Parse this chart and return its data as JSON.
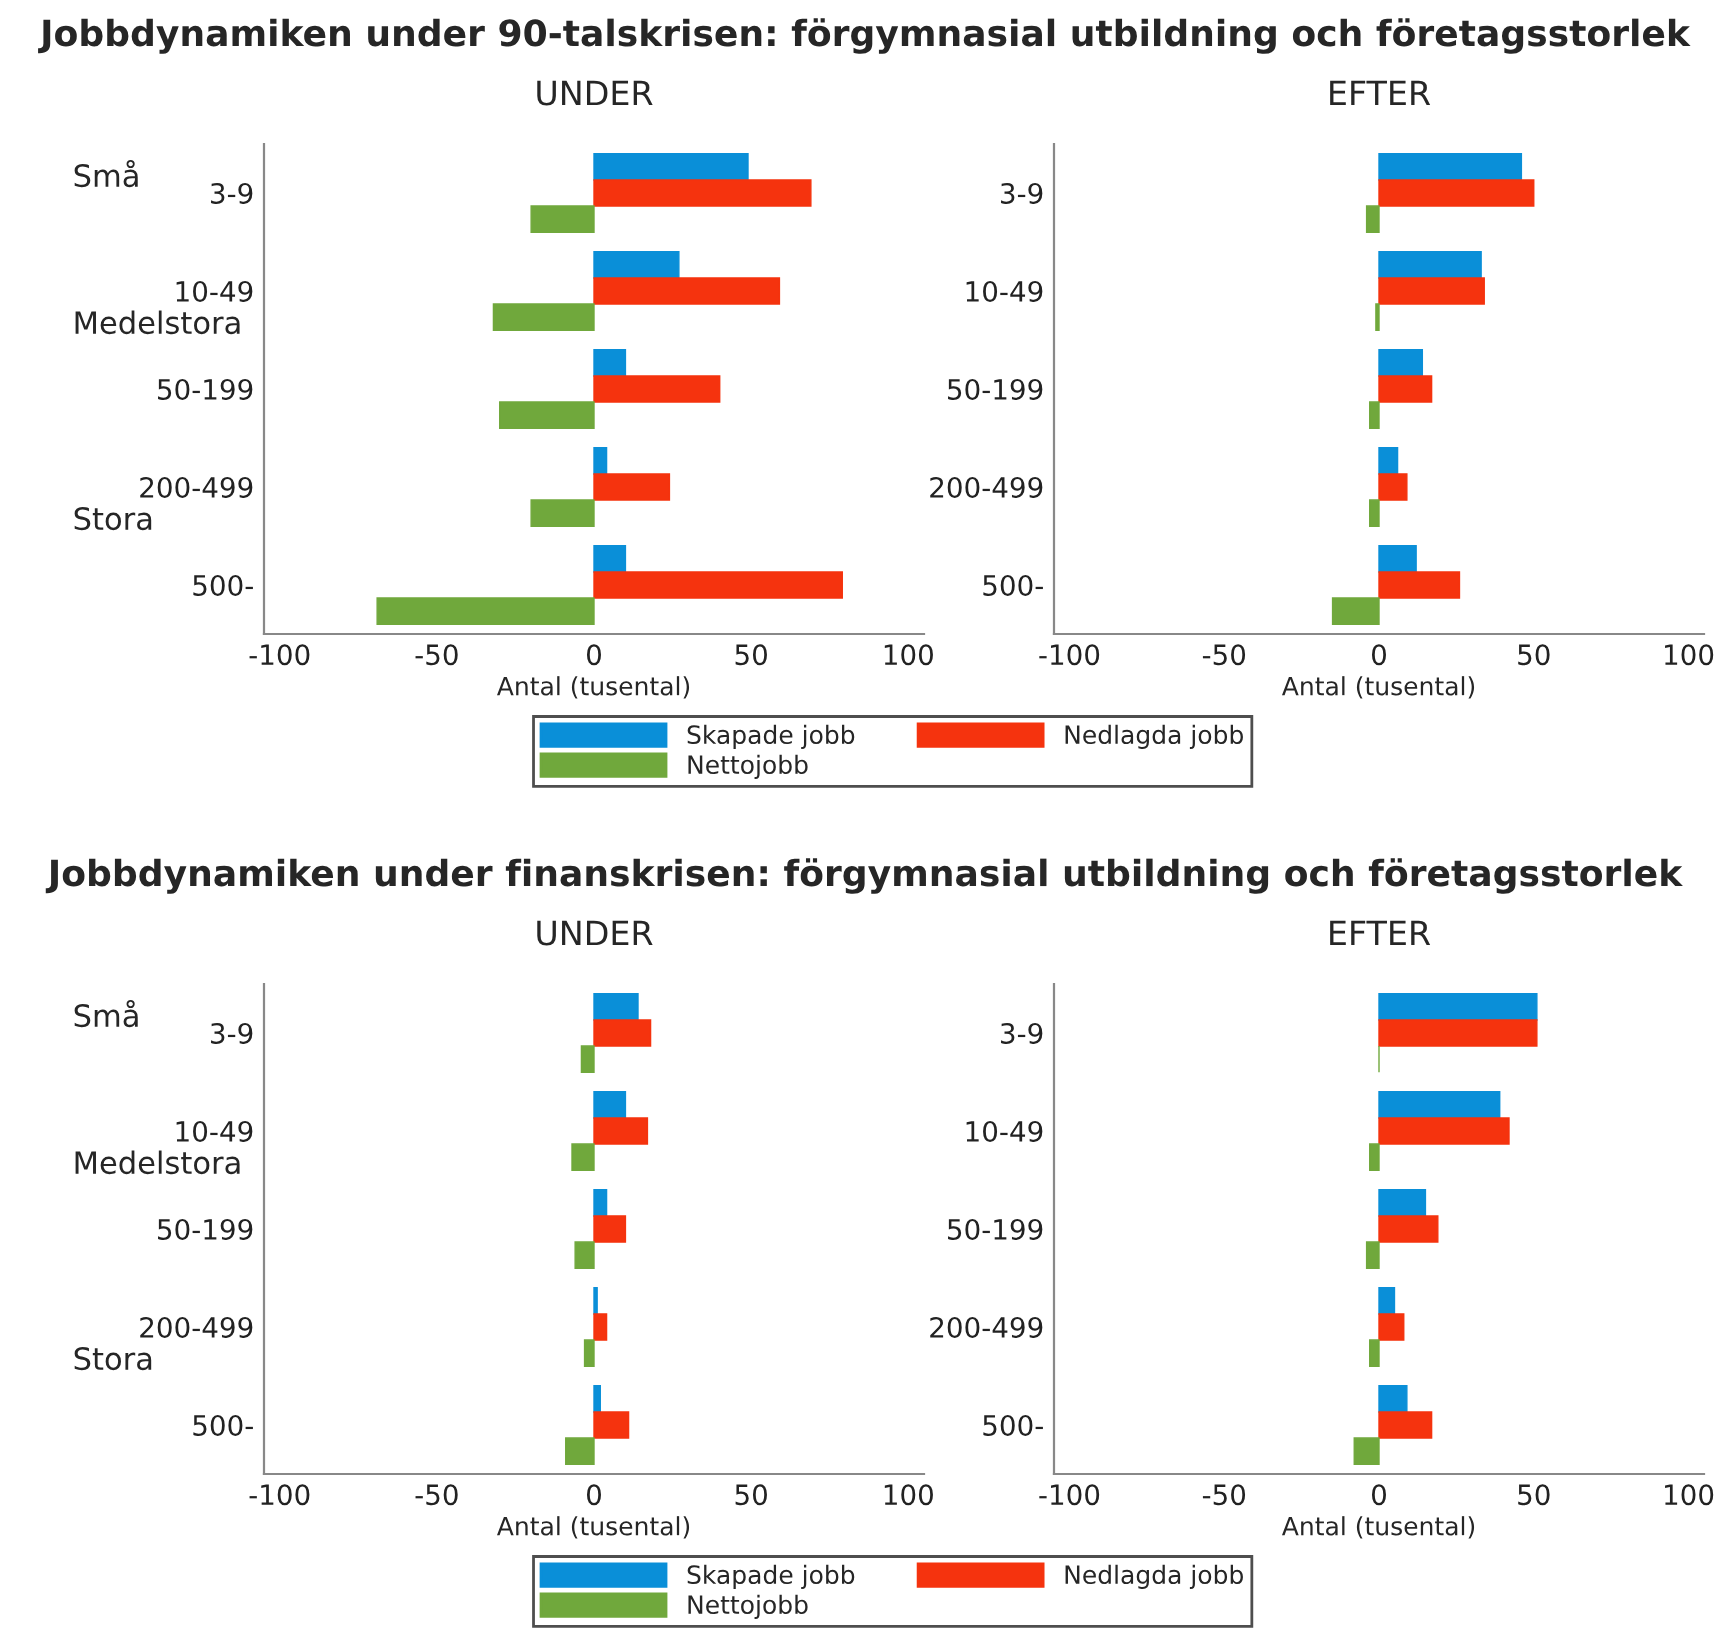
{
  "chart_data": [
    {
      "type": "bar",
      "orientation": "horizontal",
      "title": "UNDER",
      "xlabel": "Antal (tusental)",
      "categories": [
        "3-9",
        "10-49",
        "50-199",
        "200-499",
        "500-"
      ],
      "xlim": [
        -105,
        105
      ],
      "xticks": [
        -100,
        -50,
        0,
        50,
        100
      ],
      "legend": "bottom",
      "grid": false,
      "annotations": [
        "Jobbdynamiken under 90-talskrisen: förgymnasial utbildning och företagsstorlek",
        "Små",
        "Medelstora",
        "Stora"
      ],
      "series": [
        {
          "name": "Skapade jobb",
          "color": "#0a8fd8",
          "values": [
            49,
            27,
            10,
            4,
            10
          ]
        },
        {
          "name": "Nedlagda jobb",
          "color": "#f5330e",
          "values": [
            69,
            59,
            40,
            24,
            79
          ]
        },
        {
          "name": "Nettojobb",
          "color": "#70a83c",
          "values": [
            -20,
            -32,
            -30,
            -20,
            -69
          ]
        }
      ]
    },
    {
      "type": "bar",
      "orientation": "horizontal",
      "title": "EFTER",
      "xlabel": "Antal (tusental)",
      "categories": [
        "3-9",
        "10-49",
        "50-199",
        "200-499",
        "500-"
      ],
      "xlim": [
        -105,
        105
      ],
      "xticks": [
        -100,
        -50,
        0,
        50,
        100
      ],
      "grid": false,
      "series": [
        {
          "color": "#0a8fd8",
          "values": [
            46,
            33,
            14,
            6,
            12
          ]
        },
        {
          "color": "#f5330e",
          "values": [
            50,
            34,
            17,
            9,
            26
          ]
        },
        {
          "color": "#70a83c",
          "values": [
            -4,
            -1,
            -3,
            -3,
            -15
          ]
        }
      ]
    },
    {
      "type": "bar",
      "orientation": "horizontal",
      "title": "UNDER",
      "xlabel": "Antal (tusental)",
      "categories": [
        "3-9",
        "10-49",
        "50-199",
        "200-499",
        "500-"
      ],
      "xlim": [
        -105,
        105
      ],
      "xticks": [
        -100,
        -50,
        0,
        50,
        100
      ],
      "legend": "bottom",
      "grid": false,
      "annotations": [
        "Jobbdynamiken under finanskrisen: förgymnasial utbildning och företagsstorlek",
        "Små",
        "Medelstora",
        "Stora"
      ],
      "series": [
        {
          "name": "Skapade jobb",
          "color": "#0a8fd8",
          "values": [
            14,
            10,
            4,
            1,
            2
          ]
        },
        {
          "name": "Nedlagda jobb",
          "color": "#f5330e",
          "values": [
            18,
            17,
            10,
            4,
            11
          ]
        },
        {
          "name": "Nettojobb",
          "color": "#70a83c",
          "values": [
            -4,
            -7,
            -6,
            -3,
            -9
          ]
        }
      ]
    },
    {
      "type": "bar",
      "orientation": "horizontal",
      "title": "EFTER",
      "xlabel": "Antal (tusental)",
      "categories": [
        "3-9",
        "10-49",
        "50-199",
        "200-499",
        "500-"
      ],
      "xlim": [
        -105,
        105
      ],
      "xticks": [
        -100,
        -50,
        0,
        50,
        100
      ],
      "grid": false,
      "series": [
        {
          "color": "#0a8fd8",
          "values": [
            51,
            39,
            15,
            5,
            9
          ]
        },
        {
          "color": "#f5330e",
          "values": [
            51,
            42,
            19,
            8,
            17
          ]
        },
        {
          "color": "#70a83c",
          "values": [
            0,
            -3,
            -4,
            -3,
            -8
          ]
        }
      ]
    }
  ]
}
